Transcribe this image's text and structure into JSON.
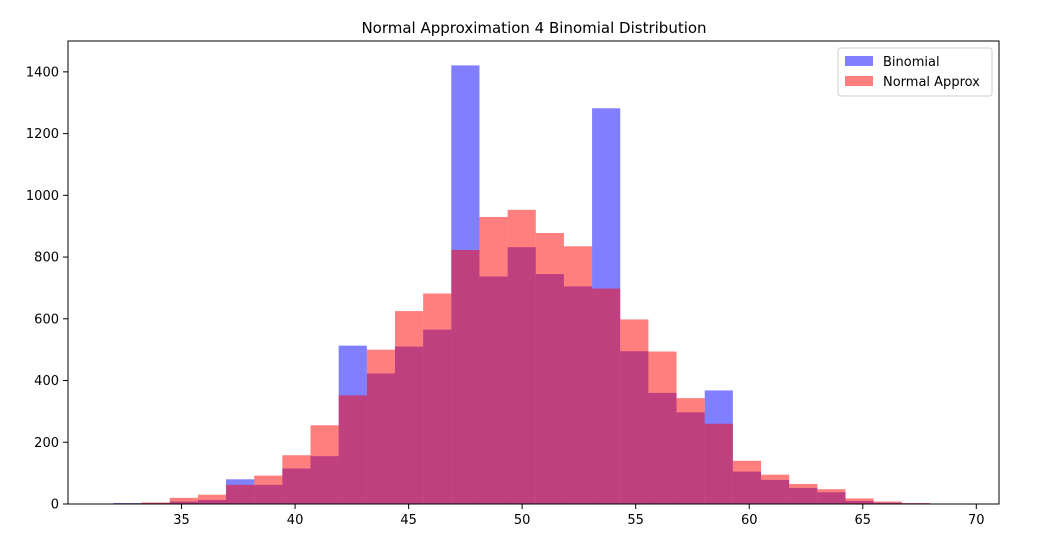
{
  "chart_data": {
    "type": "bar",
    "title": "Normal Approximation 4 Binomial Distribution",
    "xlabel": "",
    "ylabel": "",
    "xlim": [
      30,
      71
    ],
    "ylim": [
      0,
      1500
    ],
    "xticks": [
      35,
      40,
      45,
      50,
      55,
      60,
      65,
      70
    ],
    "yticks": [
      0,
      200,
      400,
      600,
      800,
      1000,
      1200,
      1400
    ],
    "grid": false,
    "legend_position": "top-right",
    "series": [
      {
        "name": "Binomial",
        "color": "#0000ff",
        "opacity": 0.5,
        "bin_edges": [
          32.0,
          33.24,
          34.48,
          35.72,
          36.96,
          38.2,
          39.44,
          40.68,
          41.92,
          43.16,
          44.4,
          45.64,
          46.88,
          48.12,
          49.36,
          50.6,
          51.84,
          53.08,
          54.32,
          55.56,
          56.8,
          58.04,
          59.28,
          60.52,
          61.76,
          63.0,
          64.24,
          65.48,
          66.72,
          67.96
        ],
        "values": [
          3,
          3,
          8,
          13,
          80,
          62,
          115,
          155,
          513,
          423,
          510,
          565,
          1421,
          737,
          832,
          745,
          705,
          1282,
          495,
          360,
          297,
          368,
          105,
          78,
          52,
          38,
          10,
          4,
          2
        ]
      },
      {
        "name": "Normal Approx",
        "color": "#ff0000",
        "opacity": 0.5,
        "bin_edges": [
          32.0,
          33.24,
          34.48,
          35.72,
          36.96,
          38.2,
          39.44,
          40.68,
          41.92,
          43.16,
          44.4,
          45.64,
          46.88,
          48.12,
          49.36,
          50.6,
          51.84,
          53.08,
          54.32,
          55.56,
          56.8,
          58.04,
          59.28,
          60.52,
          61.76,
          63.0,
          64.24,
          65.48,
          66.72,
          67.96
        ],
        "values": [
          2,
          5,
          20,
          30,
          62,
          92,
          158,
          255,
          352,
          500,
          625,
          682,
          823,
          930,
          953,
          878,
          835,
          698,
          598,
          494,
          343,
          260,
          140,
          95,
          65,
          48,
          18,
          8,
          3
        ]
      }
    ]
  }
}
